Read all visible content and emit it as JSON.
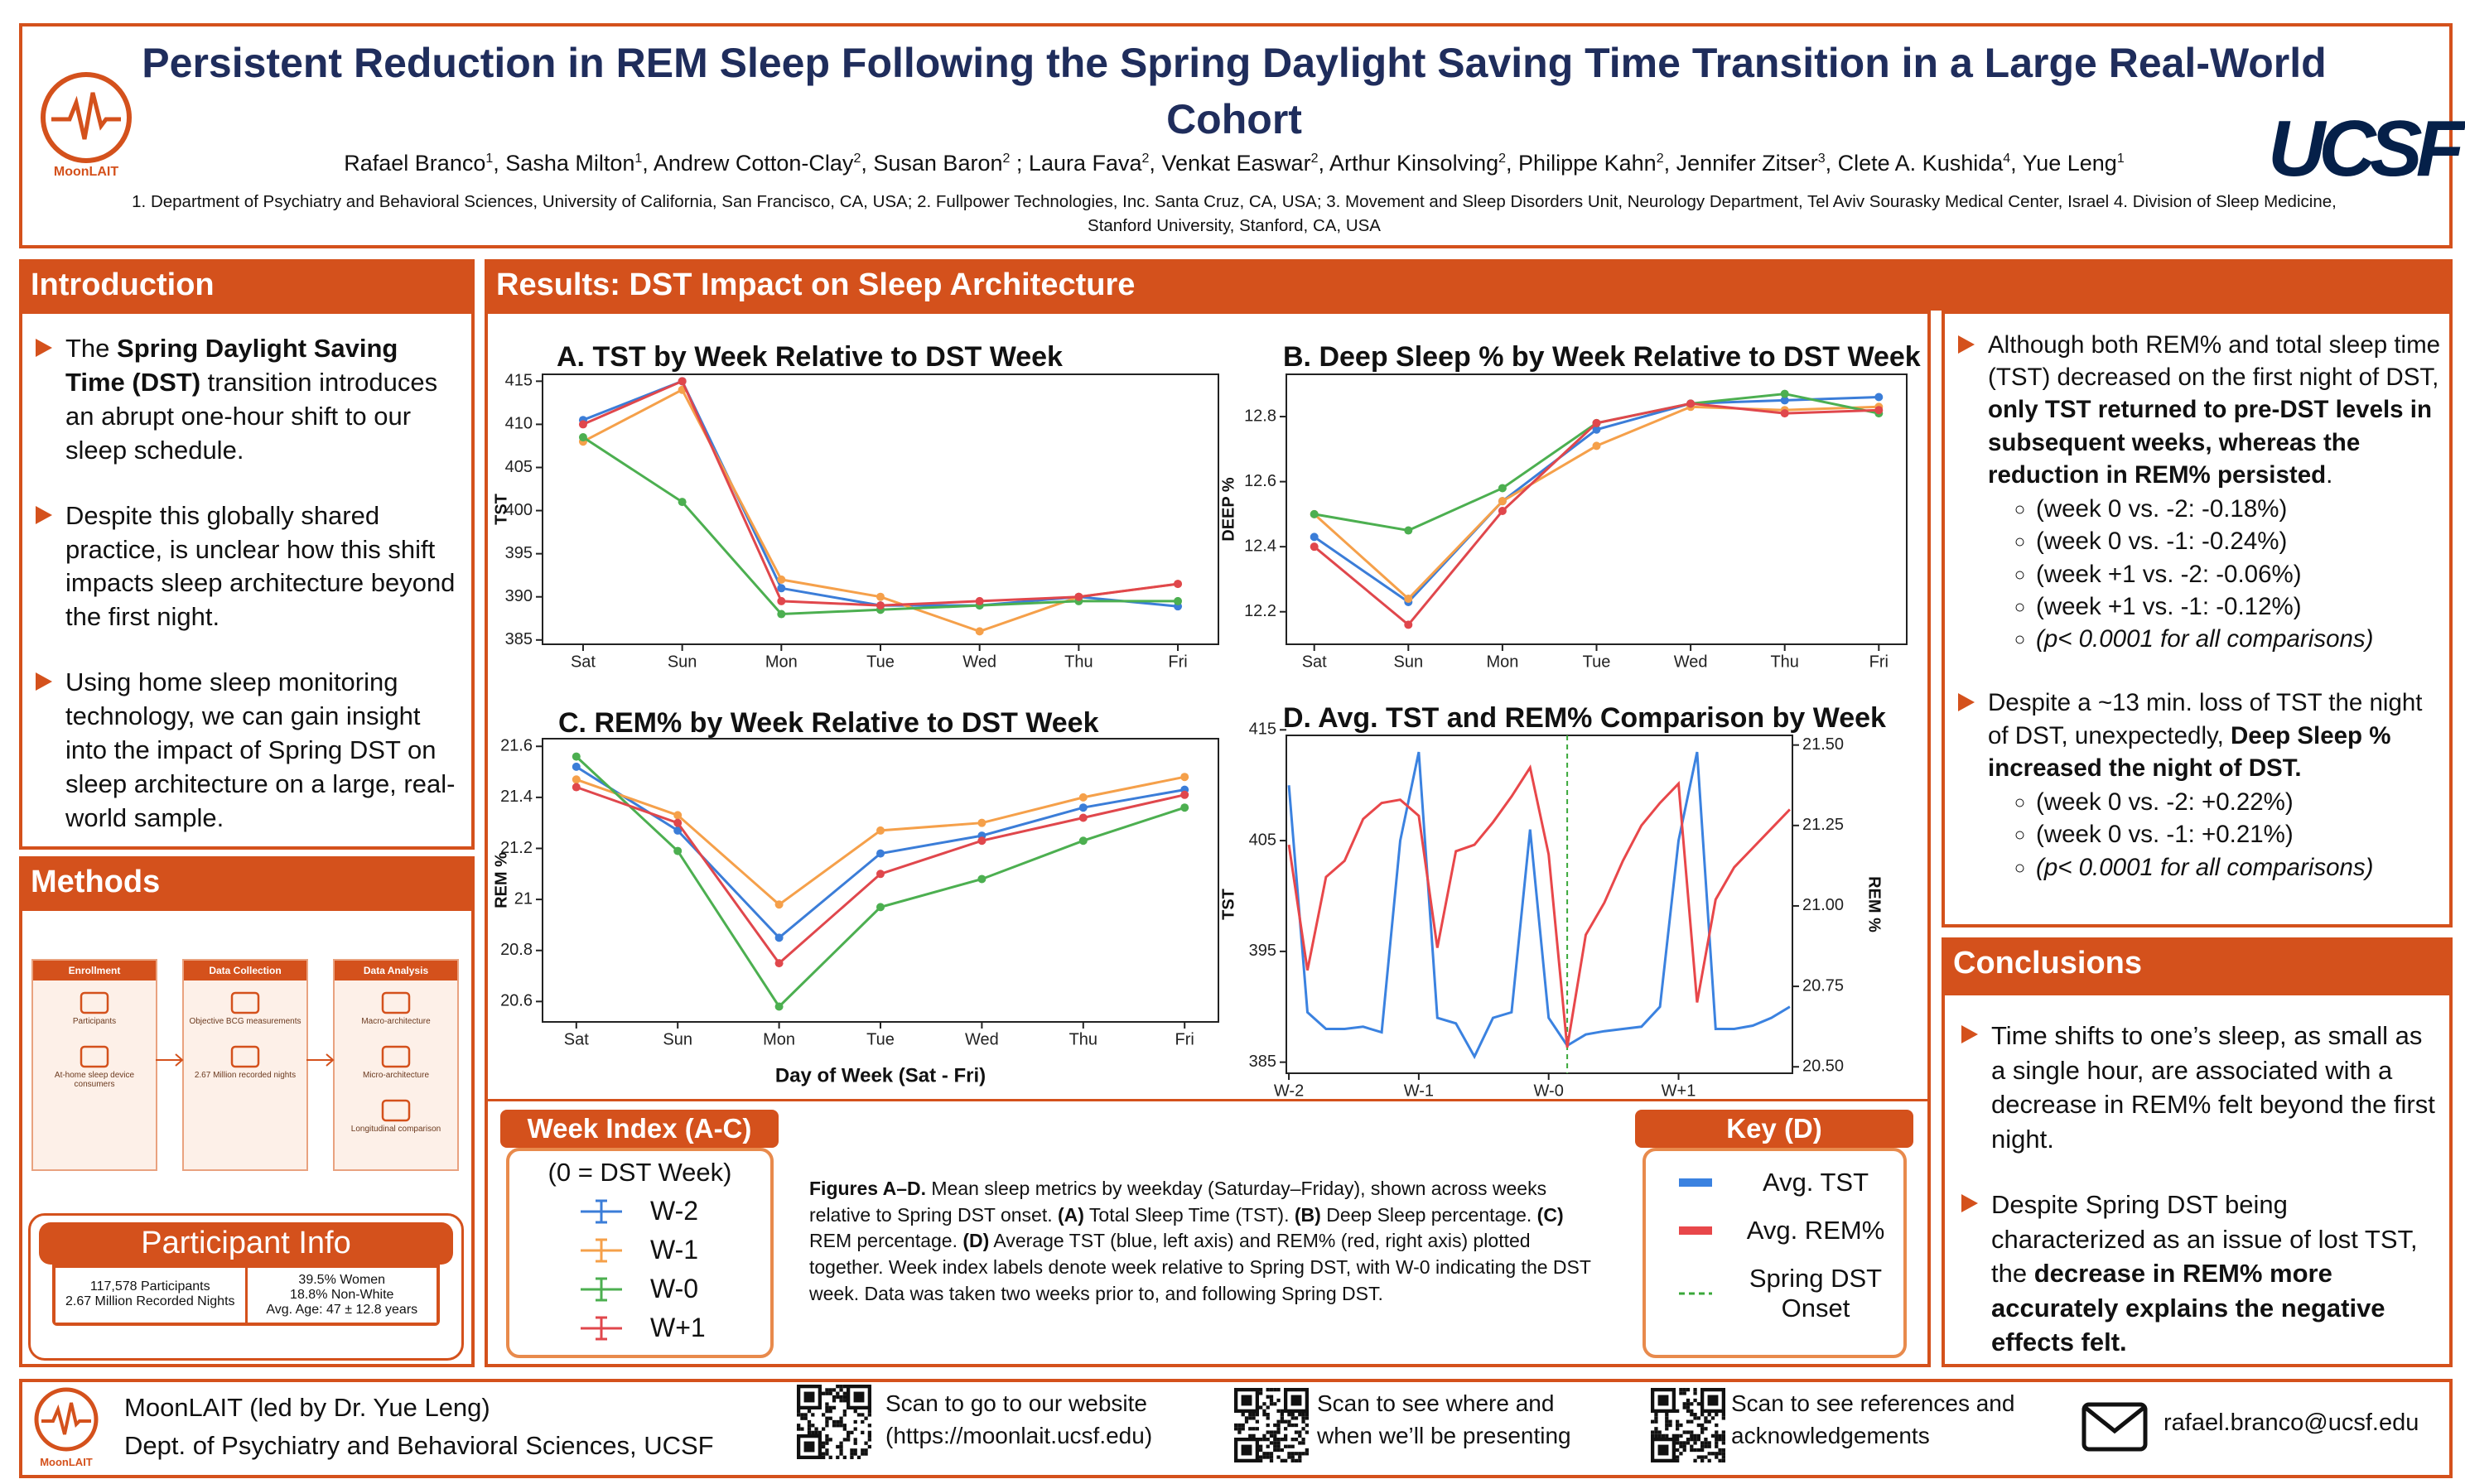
{
  "header": {
    "title": "Persistent Reduction in REM Sleep Following the Spring Daylight Saving Time Transition in a Large Real-World Cohort",
    "authors": [
      {
        "name": "Rafael Branco",
        "aff": "1",
        "sep": ","
      },
      {
        "name": "Sasha Milton",
        "aff": "1",
        "sep": ","
      },
      {
        "name": "Andrew Cotton-Clay",
        "aff": "2",
        "sep": ","
      },
      {
        "name": "Susan Baron",
        "aff": "2",
        "sep": " ;"
      },
      {
        "name": "Laura Fava",
        "aff": "2",
        "sep": ","
      },
      {
        "name": "Venkat Easwar",
        "aff": "2",
        "sep": ","
      },
      {
        "name": "Arthur Kinsolving",
        "aff": "2",
        "sep": ","
      },
      {
        "name": "Philippe Kahn",
        "aff": "2",
        "sep": ","
      },
      {
        "name": "Jennifer Zitser",
        "aff": "3",
        "sep": ","
      },
      {
        "name": "Clete A. Kushida",
        "aff": "4",
        "sep": ","
      },
      {
        "name": "Yue Leng",
        "aff": "1"
      }
    ],
    "affiliations": "1. Department of Psychiatry and Behavioral Sciences, University of California, San Francisco, CA, USA; 2. Fullpower Technologies, Inc. Santa Cruz, CA, USA; 3. Movement and Sleep Disorders Unit, Neurology Department, Tel Aviv Sourasky Medical Center, Israel 4. Division of Sleep Medicine, Stanford University, Stanford, CA, USA",
    "lab_logo": "MoonLAIT",
    "university_logo": "UCSF"
  },
  "introduction": {
    "title": "Introduction",
    "bullets": [
      [
        {
          "text": "The "
        },
        {
          "text": "Spring Daylight Saving Time (DST)",
          "bold": true
        },
        {
          "text": " transition introduces an abrupt one-hour shift to our sleep schedule."
        }
      ],
      [
        {
          "text": "Despite this globally shared practice, is unclear how this shift impacts sleep architecture beyond the first night."
        }
      ],
      [
        {
          "text": "Using home sleep monitoring technology, we can gain insight into the impact of Spring DST on sleep architecture on a large, real-world sample."
        }
      ]
    ]
  },
  "methods": {
    "title": "Methods",
    "flow": [
      {
        "title": "Enrollment",
        "labels": [
          "Participants",
          "At-home sleep device consumers"
        ]
      },
      {
        "title": "Data Collection",
        "labels": [
          "Objective BCG measurements",
          "2.67 Million recorded nights"
        ]
      },
      {
        "title": "Data Analysis",
        "labels": [
          "Macro-architecture",
          "Micro-architecture",
          "Longitudinal comparison"
        ]
      }
    ],
    "participant_info": {
      "title": "Participant Info",
      "left": [
        "117,578 Participants",
        "2.67 Million Recorded Nights"
      ],
      "right": [
        "39.5% Women",
        "18.8% Non-White",
        "Avg. Age: 47 ± 12.8 years"
      ]
    }
  },
  "results": {
    "title": "Results: DST Impact on Sleep Architecture",
    "week_index": {
      "title": "Week Index (A-C)",
      "subtitle": "(0 = DST Week)"
    },
    "key": {
      "title": "Key (D)"
    },
    "caption": [
      {
        "text": "Figures A–D.",
        "bold": true
      },
      {
        "text": " Mean sleep metrics by weekday (Saturday–Friday), shown across weeks relative to Spring DST onset. "
      },
      {
        "text": "(A)",
        "bold": true
      },
      {
        "text": " Total Sleep Time (TST). "
      },
      {
        "text": "(B)",
        "bold": true
      },
      {
        "text": " Deep Sleep percentage. "
      },
      {
        "text": "(C)",
        "bold": true
      },
      {
        "text": " REM percentage. "
      },
      {
        "text": "(D)",
        "bold": true
      },
      {
        "text": " Average TST (blue, left axis) and REM% (red, right axis) plotted together. Week index labels denote week relative to Spring DST, with W-0 indicating the DST week. Data was taken two weeks prior to, and following Spring DST."
      }
    ]
  },
  "chart_data": [
    {
      "type": "line",
      "title": "A. TST by Week Relative to DST Week",
      "ylabel": "TST",
      "markers": true,
      "categories": [
        "Sat",
        "Sun",
        "Mon",
        "Tue",
        "Wed",
        "Thu",
        "Fri"
      ],
      "series": [
        {
          "name": "W-2",
          "color": "#3b7dd8",
          "values": [
            410.5,
            415,
            391,
            389,
            389,
            390,
            388.9
          ]
        },
        {
          "name": "W-1",
          "color": "#f5a04a",
          "values": [
            408,
            414,
            392,
            390,
            386,
            390,
            391.5
          ]
        },
        {
          "name": "W-0",
          "color": "#4caf50",
          "values": [
            408.5,
            401,
            388,
            388.5,
            389,
            389.5,
            389.5
          ]
        },
        {
          "name": "W+1",
          "color": "#e0474c",
          "values": [
            410,
            415,
            389.5,
            389,
            389.5,
            390,
            391.5
          ]
        }
      ],
      "ylim": [
        384.5,
        415.8
      ],
      "yticks": [
        385,
        390,
        395,
        400,
        405,
        410,
        415
      ]
    },
    {
      "type": "line",
      "title": "B. Deep Sleep % by Week Relative to DST Week",
      "ylabel": "DEEP %",
      "markers": true,
      "categories": [
        "Sat",
        "Sun",
        "Mon",
        "Tue",
        "Wed",
        "Thu",
        "Fri"
      ],
      "series": [
        {
          "name": "W-2",
          "color": "#3b7dd8",
          "values": [
            12.43,
            12.23,
            12.54,
            12.76,
            12.84,
            12.85,
            12.86
          ]
        },
        {
          "name": "W-1",
          "color": "#f5a04a",
          "values": [
            12.5,
            12.24,
            12.54,
            12.71,
            12.83,
            12.82,
            12.83
          ]
        },
        {
          "name": "W-0",
          "color": "#4caf50",
          "values": [
            12.5,
            12.45,
            12.58,
            12.78,
            12.84,
            12.87,
            12.81
          ]
        },
        {
          "name": "W+1",
          "color": "#e0474c",
          "values": [
            12.4,
            12.16,
            12.51,
            12.78,
            12.84,
            12.81,
            12.82
          ]
        }
      ],
      "ylim": [
        12.1,
        12.93
      ],
      "yticks": [
        12.2,
        12.4,
        12.6,
        12.8
      ]
    },
    {
      "type": "line",
      "title": "C. REM% by Week Relative to DST Week",
      "ylabel": "REM %",
      "xlabel": "Day of Week (Sat - Fri)",
      "markers": true,
      "categories": [
        "Sat",
        "Sun",
        "Mon",
        "Tue",
        "Wed",
        "Thu",
        "Fri"
      ],
      "series": [
        {
          "name": "W-2",
          "color": "#3b7dd8",
          "values": [
            21.52,
            21.27,
            20.85,
            21.18,
            21.25,
            21.36,
            21.43
          ]
        },
        {
          "name": "W-1",
          "color": "#f5a04a",
          "values": [
            21.47,
            21.33,
            20.98,
            21.27,
            21.3,
            21.4,
            21.48
          ]
        },
        {
          "name": "W-0",
          "color": "#4caf50",
          "values": [
            21.56,
            21.19,
            20.58,
            20.97,
            21.08,
            21.23,
            21.36
          ]
        },
        {
          "name": "W+1",
          "color": "#e0474c",
          "values": [
            21.44,
            21.3,
            20.75,
            21.1,
            21.23,
            21.32,
            21.41
          ]
        }
      ],
      "ylim": [
        20.52,
        21.63
      ],
      "yticks": [
        20.6,
        20.8,
        21.0,
        21.2,
        21.4,
        21.6
      ]
    },
    {
      "type": "line",
      "title": "D. Avg. TST and REM% Comparison by Week",
      "ylabel": "TST",
      "y2label": "REM %",
      "markers": false,
      "categories": [
        "W-2",
        null,
        null,
        null,
        null,
        null,
        null,
        "W-1",
        null,
        null,
        null,
        null,
        null,
        null,
        "W-0",
        null,
        null,
        null,
        null,
        null,
        null,
        "W+1",
        null,
        null,
        null,
        null,
        null,
        null
      ],
      "series": [
        {
          "name": "Avg. TST",
          "color": "#3b82e0",
          "values": [
            410,
            389.5,
            388,
            388,
            388.2,
            387.7,
            405,
            413,
            389,
            388.5,
            385.5,
            389,
            389.5,
            406,
            389,
            386.5,
            387.5,
            387.8,
            388,
            388.2,
            390,
            405,
            413,
            388,
            388,
            388.3,
            389,
            390
          ]
        },
        {
          "name": "Avg. REM%",
          "color": "#e8474a",
          "axis": "y2",
          "values": [
            21.19,
            20.8,
            21.09,
            21.14,
            21.27,
            21.32,
            21.33,
            21.28,
            20.87,
            21.17,
            21.19,
            21.26,
            21.34,
            21.43,
            21.16,
            20.56,
            20.91,
            21.01,
            21.14,
            21.25,
            21.32,
            21.38,
            20.7,
            21.02,
            21.12,
            21.18,
            21.24,
            21.3
          ]
        }
      ],
      "ylim": [
        384,
        414.5
      ],
      "yticks": [
        385,
        395,
        405,
        415
      ],
      "y2lim": [
        20.48,
        21.53
      ],
      "y2ticks": [
        {
          "value": 20.5,
          "label": "20.50"
        },
        20.75,
        {
          "value": 21,
          "label": "21.00"
        },
        21.25,
        {
          "value": 21.5,
          "label": "21.50"
        }
      ],
      "vline": 15,
      "vline_name": "Spring DST Onset",
      "vline_color": "#3aa83a"
    }
  ],
  "findings": {
    "bullets": [
      {
        "runs": [
          {
            "text": "Although both REM% and total sleep time (TST) decreased on the first night of DST, "
          },
          {
            "text": "only TST returned to pre-DST levels in subsequent weeks, whereas the reduction in REM% persisted",
            "bold": true
          },
          {
            "text": "."
          }
        ],
        "items": [
          {
            "text": "(week 0 vs. -2: -0.18%)"
          },
          {
            "text": "(week 0 vs. -1: -0.24%)"
          },
          {
            "text": "(week +1 vs. -2: -0.06%)"
          },
          {
            "text": "(week +1 vs. -1: -0.12%)"
          },
          {
            "text": "(p< 0.0001 for all comparisons)",
            "italic": true
          }
        ]
      },
      {
        "runs": [
          {
            "text": "Despite a ~13 min. loss of TST the night of DST, unexpectedly, "
          },
          {
            "text": "Deep Sleep % increased the night of DST.",
            "bold": true
          }
        ],
        "items": [
          {
            "text": "(week 0 vs. -2: +0.22%)"
          },
          {
            "text": "(week 0 vs. -1: +0.21%)"
          },
          {
            "text": "(p< 0.0001 for all comparisons)",
            "italic": true
          }
        ]
      }
    ]
  },
  "conclusions": {
    "title": "Conclusions",
    "bullets": [
      [
        {
          "text": "Time shifts to one’s sleep, as small as a single hour, are associated with a decrease in REM% felt beyond the first night."
        }
      ],
      [
        {
          "text": "Despite Spring DST being characterized as an issue of lost TST, the "
        },
        {
          "text": "decrease in REM% more accurately explains the negative effects felt.",
          "bold": true
        }
      ]
    ]
  },
  "footer": {
    "lab": "MoonLAIT (led by Dr. Yue Leng)",
    "department": "Dept. of Psychiatry and Behavioral Sciences, UCSF",
    "qr_website": "Scan to go to our website (https://moonlait.ucsf.edu)",
    "qr_presenting": "Scan to see where and when we’ll be presenting",
    "qr_references": "Scan to see references and acknowledgements",
    "email": "rafael.branco@ucsf.edu",
    "logo": "MoonLAIT"
  }
}
